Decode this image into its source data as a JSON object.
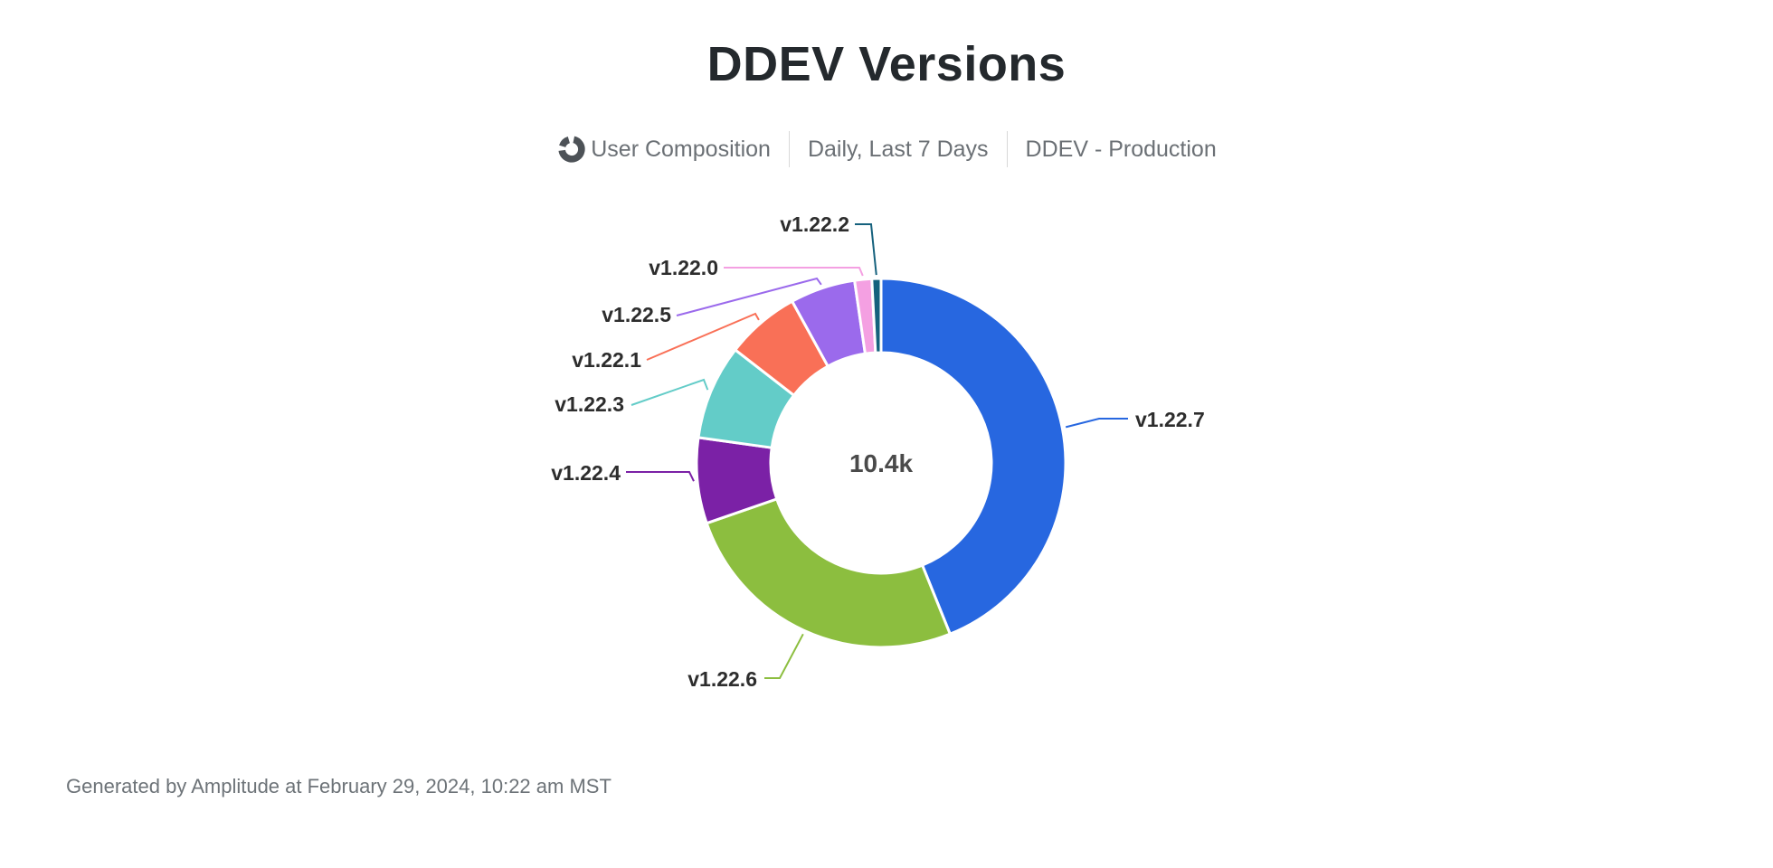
{
  "header": {
    "title": "DDEV Versions"
  },
  "subtitle": {
    "chart_type": "User Composition",
    "date_range": "Daily, Last 7 Days",
    "project": "DDEV - Production"
  },
  "footer": {
    "text": "Generated by Amplitude at February 29, 2024, 10:22 am MST"
  },
  "chart_data": {
    "type": "pie",
    "subtype": "donut",
    "title": "DDEV Versions",
    "center_label": "10.4k",
    "total_users": 10400,
    "legend_position": "outside-callouts",
    "segments": [
      {
        "label": "v1.22.7",
        "percent": 43.9,
        "approx_users": 4566,
        "color": "#2767E0"
      },
      {
        "label": "v1.22.6",
        "percent": 25.8,
        "approx_users": 2683,
        "color": "#8CBE3F"
      },
      {
        "label": "v1.22.4",
        "percent": 7.5,
        "approx_users": 780,
        "color": "#7B21A6"
      },
      {
        "label": "v1.22.3",
        "percent": 8.3,
        "approx_users": 863,
        "color": "#63CCC8"
      },
      {
        "label": "v1.22.1",
        "percent": 6.5,
        "approx_users": 676,
        "color": "#F97057"
      },
      {
        "label": "v1.22.5",
        "percent": 5.7,
        "approx_users": 593,
        "color": "#9B6AEC"
      },
      {
        "label": "v1.22.0",
        "percent": 1.5,
        "approx_users": 156,
        "color": "#F4A0E2"
      },
      {
        "label": "v1.22.2",
        "percent": 0.8,
        "approx_users": 83,
        "color": "#15617D"
      }
    ]
  }
}
